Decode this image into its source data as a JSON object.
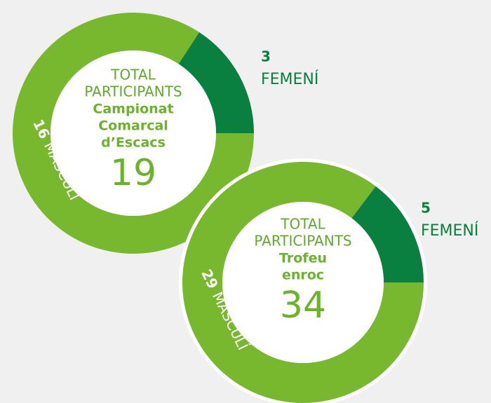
{
  "chart_data": [
    {
      "type": "donut",
      "label": [
        "TOTAL",
        "PARTICIPANTS"
      ],
      "title": [
        "Campionat",
        "Comarcal",
        "d’Escacs"
      ],
      "total": 19,
      "categories": [
        "FEMENÍ",
        "MASCULÍ"
      ],
      "values": [
        3,
        16
      ],
      "colors": [
        "#0a8040",
        "#77b82f"
      ]
    },
    {
      "type": "donut",
      "label": [
        "TOTAL",
        "PARTICIPANTS"
      ],
      "title": [
        "Trofeu",
        "enroc"
      ],
      "total": 34,
      "categories": [
        "FEMENÍ",
        "MASCULÍ"
      ],
      "values": [
        5,
        29
      ],
      "colors": [
        "#0a8040",
        "#77b82f"
      ]
    }
  ]
}
